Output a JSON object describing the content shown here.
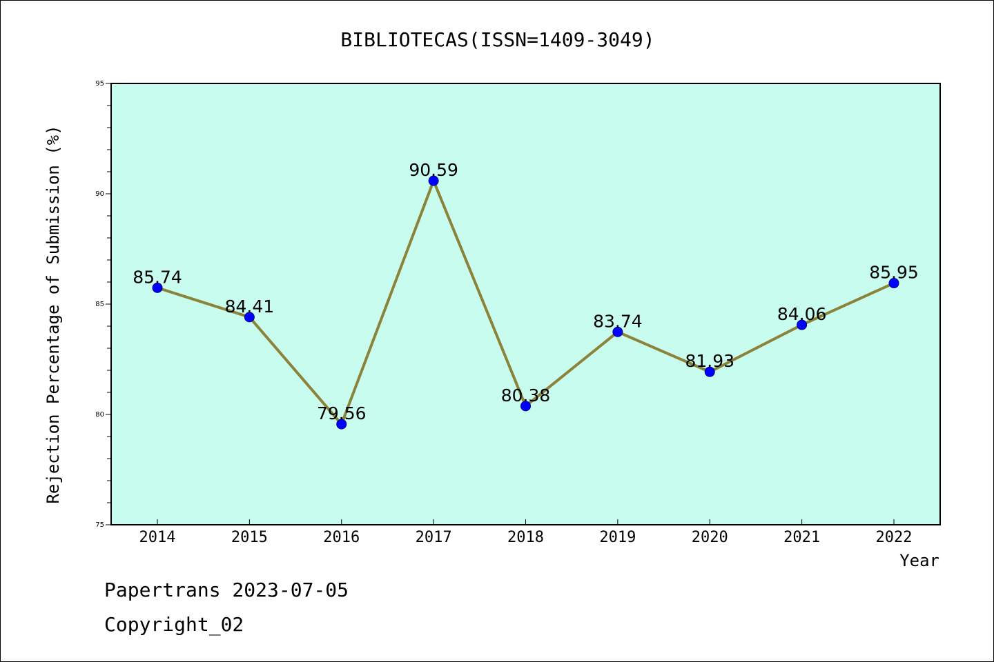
{
  "footer": {
    "line1": "Papertrans 2023-07-05",
    "line2": "Copyright_02"
  },
  "colors": {
    "plot_background": "#c8fcee",
    "line": "#8b8339",
    "marker": "#0000ff",
    "marker_edge": "#00008b"
  },
  "chart_data": {
    "type": "line",
    "title": "BIBLIOTECAS(ISSN=1409-3049)",
    "xlabel": "Year",
    "ylabel": "Rejection Percentage of Submission (%)",
    "categories": [
      "2014",
      "2015",
      "2016",
      "2017",
      "2018",
      "2019",
      "2020",
      "2021",
      "2022"
    ],
    "series": [
      {
        "values": [
          85.74,
          84.41,
          79.56,
          90.59,
          80.38,
          83.74,
          81.93,
          84.06,
          85.95
        ],
        "data_labels": [
          "85.74",
          "84.41",
          "79.56",
          "90.59",
          "80.38",
          "83.74",
          "81.93",
          "84.06",
          "85.95"
        ]
      }
    ],
    "ylim": [
      75,
      95
    ],
    "yticks": [
      "75",
      "80",
      "85",
      "90",
      "95"
    ],
    "y_minor_step": 1,
    "grid": false,
    "markers": true
  }
}
